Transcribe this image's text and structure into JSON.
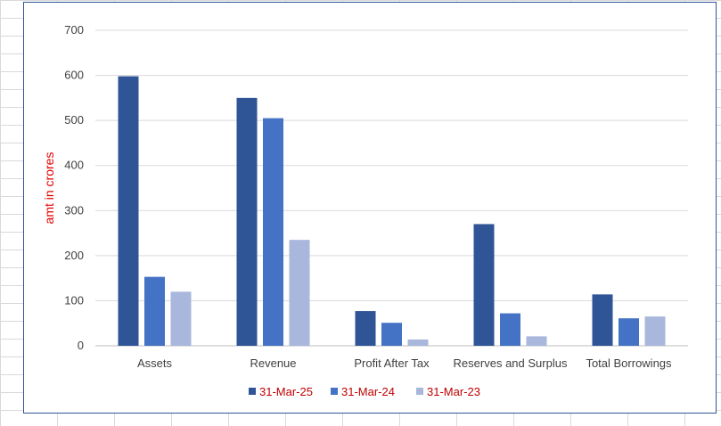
{
  "chart_data": {
    "type": "bar",
    "categories": [
      "Assets",
      "Revenue",
      "Profit After Tax",
      "Reserves and Surplus",
      "Total Borrowings"
    ],
    "series": [
      {
        "name": "31-Mar-25",
        "color": "#2f5597",
        "values": [
          598,
          550,
          77,
          270,
          114
        ]
      },
      {
        "name": "31-Mar-24",
        "color": "#4472c4",
        "values": [
          153,
          505,
          51,
          72,
          61
        ]
      },
      {
        "name": "31-Mar-23",
        "color": "#a9b7dc",
        "values": [
          120,
          235,
          14,
          21,
          65
        ]
      }
    ],
    "ylabel": "amt in crores",
    "ylim": [
      0,
      700
    ],
    "yticks": [
      0,
      100,
      200,
      300,
      400,
      500,
      600,
      700
    ],
    "grid": true,
    "legend": "bottom"
  }
}
